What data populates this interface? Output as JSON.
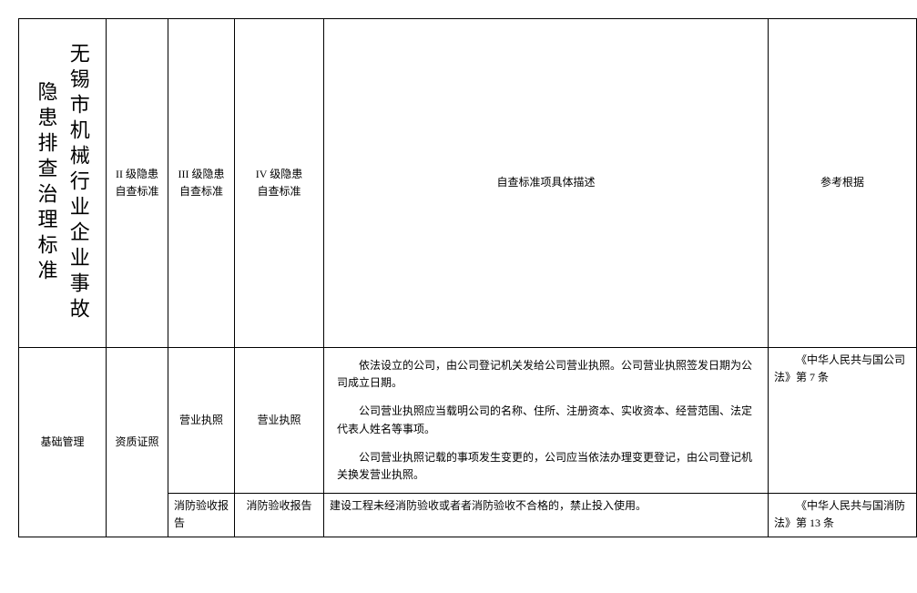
{
  "title": "无锡市机械行业企业事故隐患排查治理标准",
  "headers": {
    "col2": "II 级隐患自查标准",
    "col3": "III 级隐患自查标准",
    "col4": "IV 级隐患\n自查标准",
    "col5": "自查标准项具体描述",
    "col6": "参考根据"
  },
  "rows": {
    "r1": {
      "c1": "基础管理",
      "c2": "资质证照",
      "c3": "营业执照",
      "c4": "营业执照",
      "desc_p1": "依法设立的公司，由公司登记机关发给公司营业执照。公司营业执照签发日期为公司成立日期。",
      "desc_p2": "公司营业执照应当载明公司的名称、住所、注册资本、实收资本、经营范围、法定代表人姓名等事项。",
      "desc_p3": "公司营业执照记载的事项发生变更的，公司应当依法办理变更登记，由公司登记机关换发营业执照。",
      "ref": "《中华人民共与国公司法》第 7 条"
    },
    "r2": {
      "c3": "消防验收报告",
      "c4": "消防验收报告",
      "desc": "建设工程未经消防验收或者者消防验收不合格的，禁止投入使用。",
      "ref": "《中华人民共与国消防法》第 13 条"
    }
  },
  "style": {
    "border_color": "#000000",
    "background_color": "#ffffff",
    "text_color": "#000000",
    "title_fontsize": 22,
    "body_fontsize": 12
  }
}
